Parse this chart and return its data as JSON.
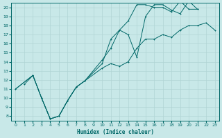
{
  "xlabel": "Humidex (Indice chaleur)",
  "bg_color": "#c8e8e8",
  "grid_color": "#b0d4d4",
  "line_color": "#006868",
  "xlim": [
    -0.5,
    23.5
  ],
  "ylim": [
    7.5,
    20.5
  ],
  "xticks": [
    0,
    1,
    2,
    3,
    4,
    5,
    6,
    7,
    8,
    9,
    10,
    11,
    12,
    13,
    14,
    15,
    16,
    17,
    18,
    19,
    20,
    21,
    22,
    23
  ],
  "yticks": [
    8,
    9,
    10,
    11,
    12,
    13,
    14,
    15,
    16,
    17,
    18,
    19,
    20
  ],
  "line1_x": [
    0,
    2,
    3,
    4,
    5,
    6,
    7,
    8,
    10,
    11,
    12,
    13,
    14,
    15,
    16,
    17,
    18,
    19,
    20,
    21,
    22,
    23
  ],
  "line1_y": [
    11.0,
    12.5,
    10.0,
    7.7,
    8.0,
    9.7,
    11.2,
    11.9,
    13.3,
    13.8,
    13.5,
    14.0,
    15.5,
    16.5,
    16.5,
    17.0,
    16.7,
    17.5,
    18.0,
    18.0,
    18.3,
    17.5
  ],
  "line2_x": [
    1,
    2,
    3,
    4,
    5,
    6,
    7,
    8,
    10,
    11,
    12,
    13,
    14,
    15,
    16,
    17,
    18,
    19,
    20,
    21
  ],
  "line2_y": [
    11.5,
    12.5,
    10.0,
    7.7,
    8.0,
    9.7,
    11.2,
    11.9,
    14.2,
    15.5,
    17.5,
    17.0,
    14.5,
    19.0,
    20.3,
    20.3,
    19.7,
    19.3,
    20.7,
    19.8
  ],
  "line3_x": [
    0,
    2,
    3,
    4,
    5,
    6,
    7,
    8,
    10,
    11,
    12,
    13,
    14,
    15,
    16,
    17,
    18,
    19,
    20,
    21
  ],
  "line3_y": [
    11.0,
    12.5,
    10.0,
    7.7,
    8.0,
    9.7,
    11.2,
    11.9,
    13.8,
    16.5,
    17.5,
    18.5,
    20.3,
    20.3,
    20.0,
    20.0,
    19.5,
    20.7,
    19.8,
    19.8
  ]
}
